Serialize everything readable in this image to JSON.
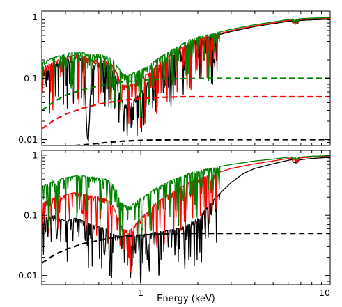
{
  "chart_data": [
    {
      "type": "line",
      "panel": "top",
      "xlabel": "",
      "x_scale": "log",
      "y_scale": "log",
      "xlim": [
        0.3,
        10
      ],
      "ylim": [
        0.008,
        1.25
      ],
      "yticks": [
        {
          "value": 0.01,
          "label": "0.01"
        },
        {
          "value": 0.1,
          "label": "0.1"
        },
        {
          "value": 1,
          "label": "1"
        }
      ],
      "xticks": [
        {
          "value": 1,
          "label": ""
        },
        {
          "value": 10,
          "label": ""
        }
      ],
      "series": [
        {
          "color": "#000000",
          "style": "solid",
          "x": [
            0.3,
            0.35,
            0.4,
            0.45,
            0.5,
            0.52,
            0.53,
            0.55,
            0.6,
            0.65,
            0.7,
            0.75,
            0.8,
            0.85,
            0.9,
            1.0,
            1.1,
            1.2,
            1.4,
            1.6,
            1.8,
            2.0,
            2.5,
            3.0,
            4.0,
            5.0,
            6.0,
            6.4,
            6.5,
            7.0,
            8.0,
            10.0
          ],
          "y": [
            0.13,
            0.17,
            0.2,
            0.22,
            0.2,
            0.012,
            0.012,
            0.17,
            0.18,
            0.17,
            0.15,
            0.09,
            0.04,
            0.035,
            0.04,
            0.06,
            0.09,
            0.13,
            0.2,
            0.28,
            0.37,
            0.42,
            0.5,
            0.58,
            0.7,
            0.78,
            0.85,
            0.87,
            0.85,
            0.88,
            0.9,
            0.92
          ]
        },
        {
          "color": "#ff0000",
          "style": "solid",
          "x": [
            0.3,
            0.35,
            0.4,
            0.45,
            0.5,
            0.55,
            0.6,
            0.65,
            0.7,
            0.75,
            0.8,
            0.85,
            0.9,
            1.0,
            1.1,
            1.2,
            1.4,
            1.6,
            1.8,
            2.0,
            2.5,
            3.0,
            4.0,
            5.0,
            6.0,
            6.4,
            6.5,
            7.0,
            8.0,
            10.0
          ],
          "y": [
            0.15,
            0.19,
            0.22,
            0.24,
            0.23,
            0.2,
            0.2,
            0.19,
            0.17,
            0.12,
            0.08,
            0.075,
            0.08,
            0.1,
            0.12,
            0.16,
            0.23,
            0.3,
            0.39,
            0.44,
            0.52,
            0.6,
            0.72,
            0.8,
            0.88,
            0.9,
            0.88,
            0.91,
            0.93,
            0.95
          ]
        },
        {
          "color": "#008000",
          "style": "solid",
          "x": [
            0.3,
            0.35,
            0.4,
            0.45,
            0.5,
            0.55,
            0.6,
            0.65,
            0.7,
            0.75,
            0.8,
            0.85,
            0.9,
            1.0,
            1.1,
            1.2,
            1.4,
            1.6,
            1.8,
            2.0,
            2.5,
            3.0,
            4.0,
            5.0,
            6.0,
            6.4,
            6.5,
            7.0,
            8.0,
            10.0
          ],
          "y": [
            0.18,
            0.22,
            0.25,
            0.27,
            0.26,
            0.24,
            0.25,
            0.23,
            0.21,
            0.16,
            0.12,
            0.11,
            0.12,
            0.14,
            0.16,
            0.2,
            0.27,
            0.34,
            0.42,
            0.47,
            0.55,
            0.63,
            0.75,
            0.83,
            0.91,
            0.93,
            0.91,
            0.94,
            0.96,
            0.98
          ]
        },
        {
          "color": "#008000",
          "style": "dashed",
          "x": [
            0.3,
            0.35,
            0.4,
            0.5,
            0.6,
            0.7,
            0.8,
            1.0,
            1.3,
            1.7,
            2.5,
            4.0,
            10.0
          ],
          "y": [
            0.03,
            0.042,
            0.053,
            0.066,
            0.075,
            0.082,
            0.087,
            0.093,
            0.097,
            0.099,
            0.1,
            0.1,
            0.1
          ]
        },
        {
          "color": "#ff0000",
          "style": "dashed",
          "x": [
            0.3,
            0.35,
            0.4,
            0.5,
            0.6,
            0.7,
            0.8,
            1.0,
            1.3,
            1.7,
            2.5,
            4.0,
            10.0
          ],
          "y": [
            0.015,
            0.021,
            0.026,
            0.033,
            0.038,
            0.041,
            0.044,
            0.047,
            0.049,
            0.05,
            0.05,
            0.05,
            0.05
          ]
        },
        {
          "color": "#000000",
          "style": "dashed",
          "x": [
            0.4,
            0.5,
            0.6,
            0.7,
            0.8,
            1.0,
            1.3,
            1.7,
            2.5,
            4.0,
            10.0
          ],
          "y": [
            0.0078,
            0.0082,
            0.0087,
            0.0091,
            0.0094,
            0.0097,
            0.0099,
            0.01,
            0.01,
            0.01,
            0.01
          ]
        }
      ]
    },
    {
      "type": "line",
      "panel": "bottom",
      "xlabel": "Energy (keV)",
      "x_scale": "log",
      "y_scale": "log",
      "xlim": [
        0.3,
        10
      ],
      "ylim": [
        0.007,
        1.2
      ],
      "yticks": [
        {
          "value": 0.01,
          "label": "0.01"
        },
        {
          "value": 0.1,
          "label": "0.1"
        },
        {
          "value": 1,
          "label": "1"
        }
      ],
      "xticks": [
        {
          "value": 1,
          "label": "1"
        },
        {
          "value": 10,
          "label": "10"
        }
      ],
      "series": [
        {
          "color": "#000000",
          "style": "solid",
          "x": [
            0.3,
            0.35,
            0.4,
            0.45,
            0.5,
            0.55,
            0.6,
            0.65,
            0.7,
            0.75,
            0.8,
            0.85,
            0.9,
            1.0,
            1.1,
            1.2,
            1.4,
            1.6,
            1.8,
            2.0,
            2.2,
            2.5,
            3.0,
            3.5,
            4.0,
            5.0,
            6.0,
            6.4,
            6.5,
            7.0,
            8.0,
            10.0
          ],
          "y": [
            0.09,
            0.1,
            0.08,
            0.09,
            0.08,
            0.07,
            0.065,
            0.06,
            0.05,
            0.045,
            0.045,
            0.046,
            0.047,
            0.048,
            0.05,
            0.052,
            0.056,
            0.062,
            0.07,
            0.09,
            0.13,
            0.2,
            0.35,
            0.5,
            0.6,
            0.72,
            0.82,
            0.85,
            0.8,
            0.84,
            0.88,
            0.92
          ]
        },
        {
          "color": "#ff0000",
          "style": "solid",
          "x": [
            0.3,
            0.35,
            0.4,
            0.45,
            0.5,
            0.55,
            0.6,
            0.65,
            0.7,
            0.75,
            0.8,
            0.85,
            0.9,
            1.0,
            1.1,
            1.2,
            1.4,
            1.6,
            1.8,
            2.0,
            2.5,
            3.0,
            4.0,
            5.0,
            6.0,
            6.4,
            6.5,
            7.0,
            8.0,
            10.0
          ],
          "y": [
            0.16,
            0.2,
            0.22,
            0.24,
            0.23,
            0.21,
            0.2,
            0.19,
            0.16,
            0.1,
            0.06,
            0.055,
            0.06,
            0.09,
            0.12,
            0.16,
            0.22,
            0.28,
            0.35,
            0.4,
            0.5,
            0.6,
            0.72,
            0.8,
            0.88,
            0.9,
            0.86,
            0.9,
            0.93,
            0.95
          ]
        },
        {
          "color": "#008000",
          "style": "solid",
          "x": [
            0.3,
            0.35,
            0.4,
            0.45,
            0.5,
            0.55,
            0.6,
            0.65,
            0.7,
            0.75,
            0.8,
            0.85,
            0.9,
            1.0,
            1.1,
            1.2,
            1.4,
            1.6,
            1.8,
            2.0,
            2.5,
            3.0,
            4.0,
            5.0,
            6.0,
            6.4,
            6.5,
            7.0,
            8.0,
            10.0
          ],
          "y": [
            0.3,
            0.38,
            0.42,
            0.45,
            0.45,
            0.43,
            0.42,
            0.4,
            0.35,
            0.25,
            0.16,
            0.14,
            0.15,
            0.19,
            0.23,
            0.28,
            0.36,
            0.43,
            0.5,
            0.55,
            0.63,
            0.7,
            0.8,
            0.86,
            0.92,
            0.94,
            0.9,
            0.93,
            0.96,
            0.98
          ]
        },
        {
          "color": "#000000",
          "style": "dashed",
          "x": [
            0.3,
            0.35,
            0.4,
            0.5,
            0.6,
            0.7,
            0.8,
            1.0,
            1.3,
            1.7,
            2.5,
            4.0,
            10.0
          ],
          "y": [
            0.016,
            0.022,
            0.027,
            0.034,
            0.038,
            0.042,
            0.044,
            0.047,
            0.049,
            0.05,
            0.05,
            0.05,
            0.05
          ]
        }
      ]
    }
  ]
}
